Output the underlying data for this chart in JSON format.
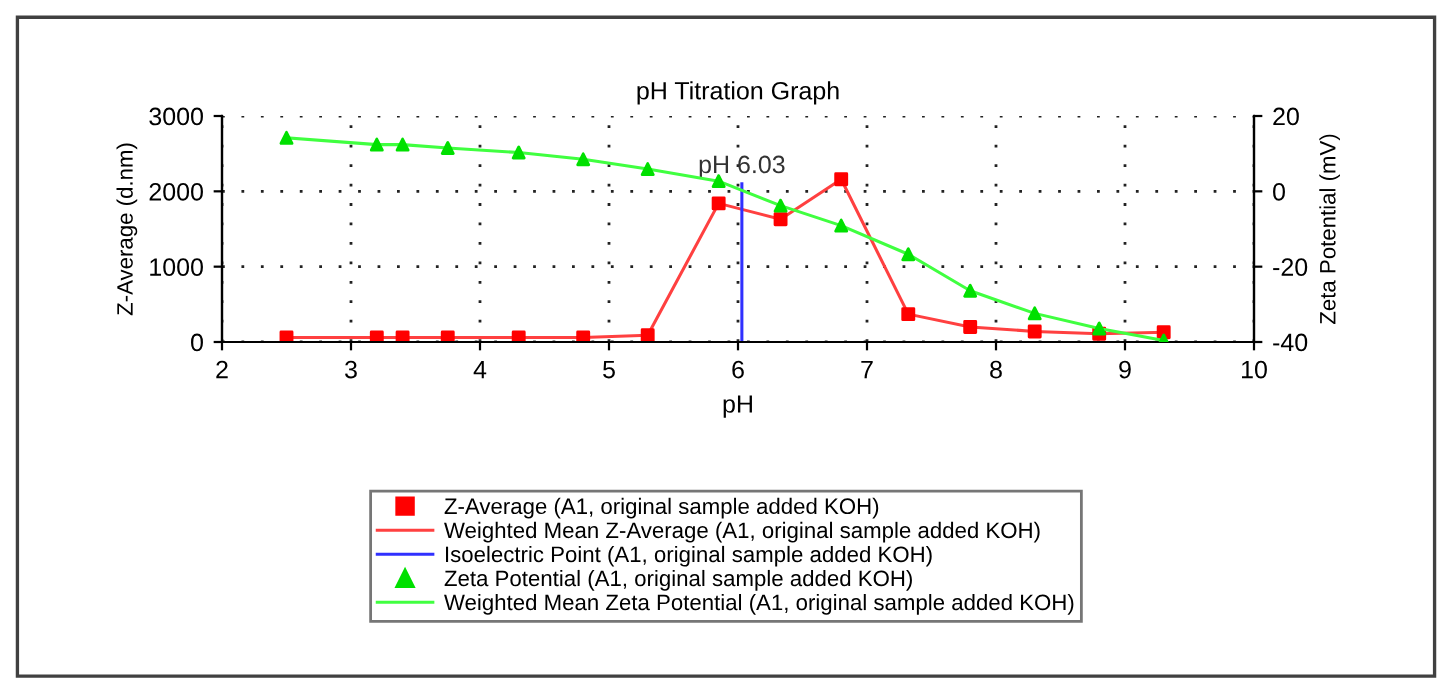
{
  "chart_data": {
    "type": "line",
    "title": "pH Titration Graph",
    "xlabel": "pH",
    "ylabel": "Z-Average (d.nm)",
    "y2label": "Zeta Potential (mV)",
    "xlim": [
      2,
      10
    ],
    "xticks": [
      2,
      3,
      4,
      5,
      6,
      7,
      8,
      9,
      10
    ],
    "ylim": [
      0,
      3000
    ],
    "yticks": [
      0,
      1000,
      2000,
      3000
    ],
    "y2lim": [
      -40,
      20
    ],
    "y2ticks": [
      -40,
      -20,
      0,
      20
    ],
    "grid": true,
    "legend": "bottom",
    "annotations": [
      {
        "text": "pH 6.03",
        "x": 6.03,
        "y": 2100
      }
    ],
    "series": [
      {
        "name": "Z-Average (A1, original sample added KOH)",
        "type": "scatter",
        "marker": "square",
        "color": "#ff0000",
        "x": [
          2.5,
          3.2,
          3.4,
          3.75,
          4.3,
          4.8,
          5.3,
          5.85,
          6.33,
          6.8,
          7.32,
          7.8,
          8.3,
          8.8,
          9.3
        ],
        "values": [
          60,
          60,
          60,
          60,
          60,
          60,
          90,
          1840,
          1630,
          2160,
          370,
          200,
          140,
          110,
          130
        ]
      },
      {
        "name": "Weighted Mean Z-Average (A1, original sample added KOH)",
        "marker": "none",
        "color": "#ff4040",
        "x": [
          2.5,
          3.2,
          3.4,
          3.75,
          4.3,
          4.8,
          5.3,
          5.85,
          6.33,
          6.8,
          7.32,
          7.8,
          8.3,
          8.8,
          9.3
        ],
        "values": [
          60,
          60,
          60,
          60,
          60,
          60,
          90,
          1840,
          1630,
          2160,
          370,
          200,
          140,
          110,
          130
        ]
      },
      {
        "name": "Isoelectric Point (A1, original sample added KOH)",
        "marker": "none",
        "color": "#3030ff",
        "x": [
          6.03,
          6.03
        ],
        "values": [
          0,
          2100
        ]
      },
      {
        "name": "Zeta Potential (A1, original sample added KOH)",
        "type": "scatter",
        "marker": "triangle",
        "axis": "y2",
        "color": "#00e000",
        "x": [
          2.5,
          3.2,
          3.4,
          3.75,
          4.3,
          4.8,
          5.3,
          5.85,
          6.33,
          6.8,
          7.32,
          7.8,
          8.3,
          8.8,
          9.3
        ],
        "values": [
          14.2,
          12.4,
          12.4,
          11.5,
          10.3,
          8.5,
          5.9,
          2.7,
          -3.8,
          -9.1,
          -16.7,
          -26.4,
          -32.4,
          -36.4,
          -39.6
        ]
      },
      {
        "name": "Weighted Mean Zeta Potential (A1, original sample added KOH)",
        "marker": "none",
        "axis": "y2",
        "color": "#40ff40",
        "x": [
          2.5,
          3.2,
          3.4,
          3.75,
          4.3,
          4.8,
          5.3,
          5.85,
          6.33,
          6.8,
          7.32,
          7.8,
          8.3,
          8.8,
          9.3
        ],
        "values": [
          14.2,
          12.4,
          12.4,
          11.5,
          10.3,
          8.5,
          5.9,
          2.7,
          -3.8,
          -9.1,
          -16.7,
          -26.4,
          -32.4,
          -36.4,
          -39.6
        ]
      }
    ]
  }
}
